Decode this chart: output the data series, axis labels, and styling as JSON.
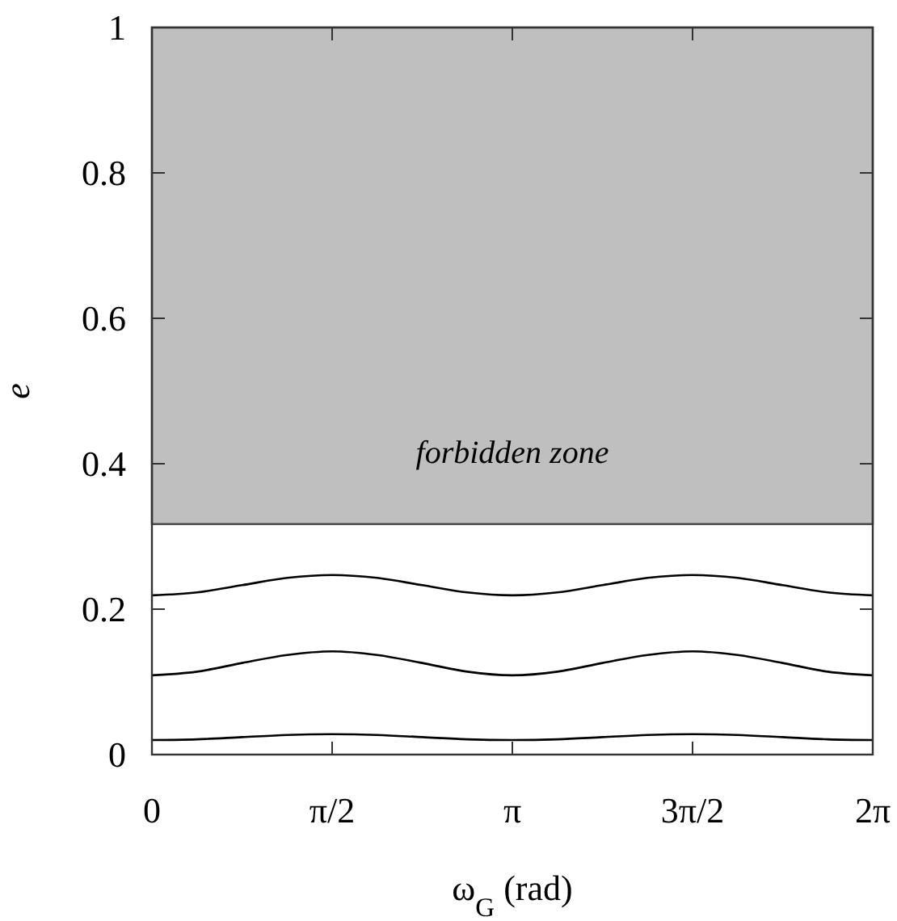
{
  "chart_data": {
    "type": "line",
    "xlabel": "ω$_{G}$ (rad)",
    "ylabel": "e",
    "x": [
      0,
      0.3927,
      0.7854,
      1.1781,
      1.5708,
      1.9635,
      2.3562,
      2.7489,
      3.1416,
      3.5343,
      3.927,
      4.3197,
      4.7124,
      5.1051,
      5.4978,
      5.8905,
      6.2832
    ],
    "series": [
      {
        "color": "#000000",
        "values": [
          0.219,
          0.223,
          0.233,
          0.243,
          0.247,
          0.243,
          0.233,
          0.223,
          0.219,
          0.223,
          0.233,
          0.243,
          0.247,
          0.243,
          0.233,
          0.223,
          0.219
        ]
      },
      {
        "color": "#000000",
        "values": [
          0.109,
          0.114,
          0.126,
          0.137,
          0.142,
          0.137,
          0.126,
          0.114,
          0.109,
          0.114,
          0.126,
          0.137,
          0.142,
          0.137,
          0.126,
          0.114,
          0.109
        ]
      },
      {
        "color": "#000000",
        "values": [
          0.02,
          0.021,
          0.024,
          0.027,
          0.028,
          0.027,
          0.024,
          0.021,
          0.02,
          0.021,
          0.024,
          0.027,
          0.028,
          0.027,
          0.024,
          0.021,
          0.02
        ]
      }
    ],
    "xlim": [
      0,
      6.2832
    ],
    "xticks": [
      0,
      {
        "value": 1.5708,
        "label": "π/2"
      },
      {
        "value": 3.1416,
        "label": "π"
      },
      {
        "value": 4.7124,
        "label": "3π/2"
      },
      {
        "value": 6.2832,
        "label": "2π"
      }
    ],
    "ylim": [
      0,
      1
    ],
    "yticks": [
      0,
      0.2,
      0.4,
      0.6,
      0.8,
      1
    ],
    "bands": [
      {
        "axis": "y",
        "from": 0.317,
        "to": 1,
        "label": "forbidden zone",
        "color": "#bfbfbf"
      }
    ],
    "marker": "none",
    "line_style": "solid",
    "grid": false
  }
}
